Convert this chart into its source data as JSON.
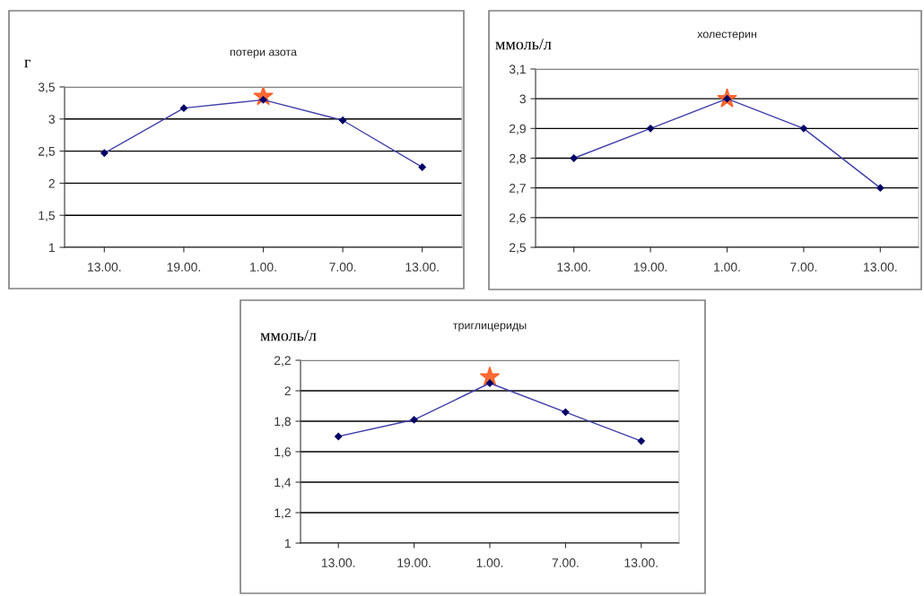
{
  "chart_data": [
    {
      "type": "line",
      "title": "потери азота",
      "ylabel": "г",
      "categories": [
        "13.00.",
        "19.00.",
        "1.00.",
        "7.00.",
        "13.00."
      ],
      "ylim": [
        1,
        3.5
      ],
      "yticks": [
        {
          "value": 1,
          "label": "1"
        },
        {
          "value": 1.5,
          "label": "1,5"
        },
        {
          "value": 2,
          "label": "2"
        },
        {
          "value": 2.5,
          "label": "2,5"
        },
        {
          "value": 3,
          "label": "3"
        },
        {
          "value": 3.5,
          "label": "3,5"
        }
      ],
      "grid": "y",
      "series": [
        {
          "color": "#3f3fa8",
          "marker": "diamond",
          "values": [
            2.47,
            3.17,
            3.3,
            2.98,
            2.25
          ]
        },
        {
          "type": "scatter",
          "color": "#ff5a1f",
          "marker": "star",
          "x": [
            "1.00."
          ],
          "values": [
            3.35
          ]
        }
      ]
    },
    {
      "type": "line",
      "title": "холестерин",
      "ylabel": "ммоль/л",
      "categories": [
        "13.00.",
        "19.00.",
        "1.00.",
        "7.00.",
        "13.00."
      ],
      "ylim": [
        2.5,
        3.1
      ],
      "yticks": [
        {
          "value": 2.5,
          "label": "2,5"
        },
        {
          "value": 2.6,
          "label": "2,6"
        },
        {
          "value": 2.7,
          "label": "2,7"
        },
        {
          "value": 2.8,
          "label": "2,8"
        },
        {
          "value": 2.9,
          "label": "2,9"
        },
        {
          "value": 3,
          "label": "3"
        },
        {
          "value": 3.1,
          "label": "3,1"
        }
      ],
      "grid": "y",
      "series": [
        {
          "color": "#3f3fa8",
          "marker": "diamond",
          "values": [
            2.8,
            2.9,
            3.0,
            2.9,
            2.7
          ]
        },
        {
          "type": "scatter",
          "color": "#ff5a1f",
          "marker": "star",
          "x": [
            "1.00."
          ],
          "values": [
            3.0
          ]
        }
      ]
    },
    {
      "type": "line",
      "title": "триглицериды",
      "ylabel": "ммоль/л",
      "categories": [
        "13.00.",
        "19.00.",
        "1.00.",
        "7.00.",
        "13.00."
      ],
      "ylim": [
        1,
        2.2
      ],
      "yticks": [
        {
          "value": 1,
          "label": "1"
        },
        {
          "value": 1.2,
          "label": "1,2"
        },
        {
          "value": 1.4,
          "label": "1,4"
        },
        {
          "value": 1.6,
          "label": "1,6"
        },
        {
          "value": 1.8,
          "label": "1,8"
        },
        {
          "value": 2,
          "label": "2"
        },
        {
          "value": 2.2,
          "label": "2,2"
        }
      ],
      "grid": "y",
      "series": [
        {
          "color": "#3f3fa8",
          "marker": "diamond",
          "values": [
            1.7,
            1.81,
            2.05,
            1.86,
            1.67
          ]
        },
        {
          "type": "scatter",
          "color": "#ff5a1f",
          "marker": "star",
          "x": [
            "1.00."
          ],
          "values": [
            2.09
          ]
        }
      ]
    }
  ]
}
